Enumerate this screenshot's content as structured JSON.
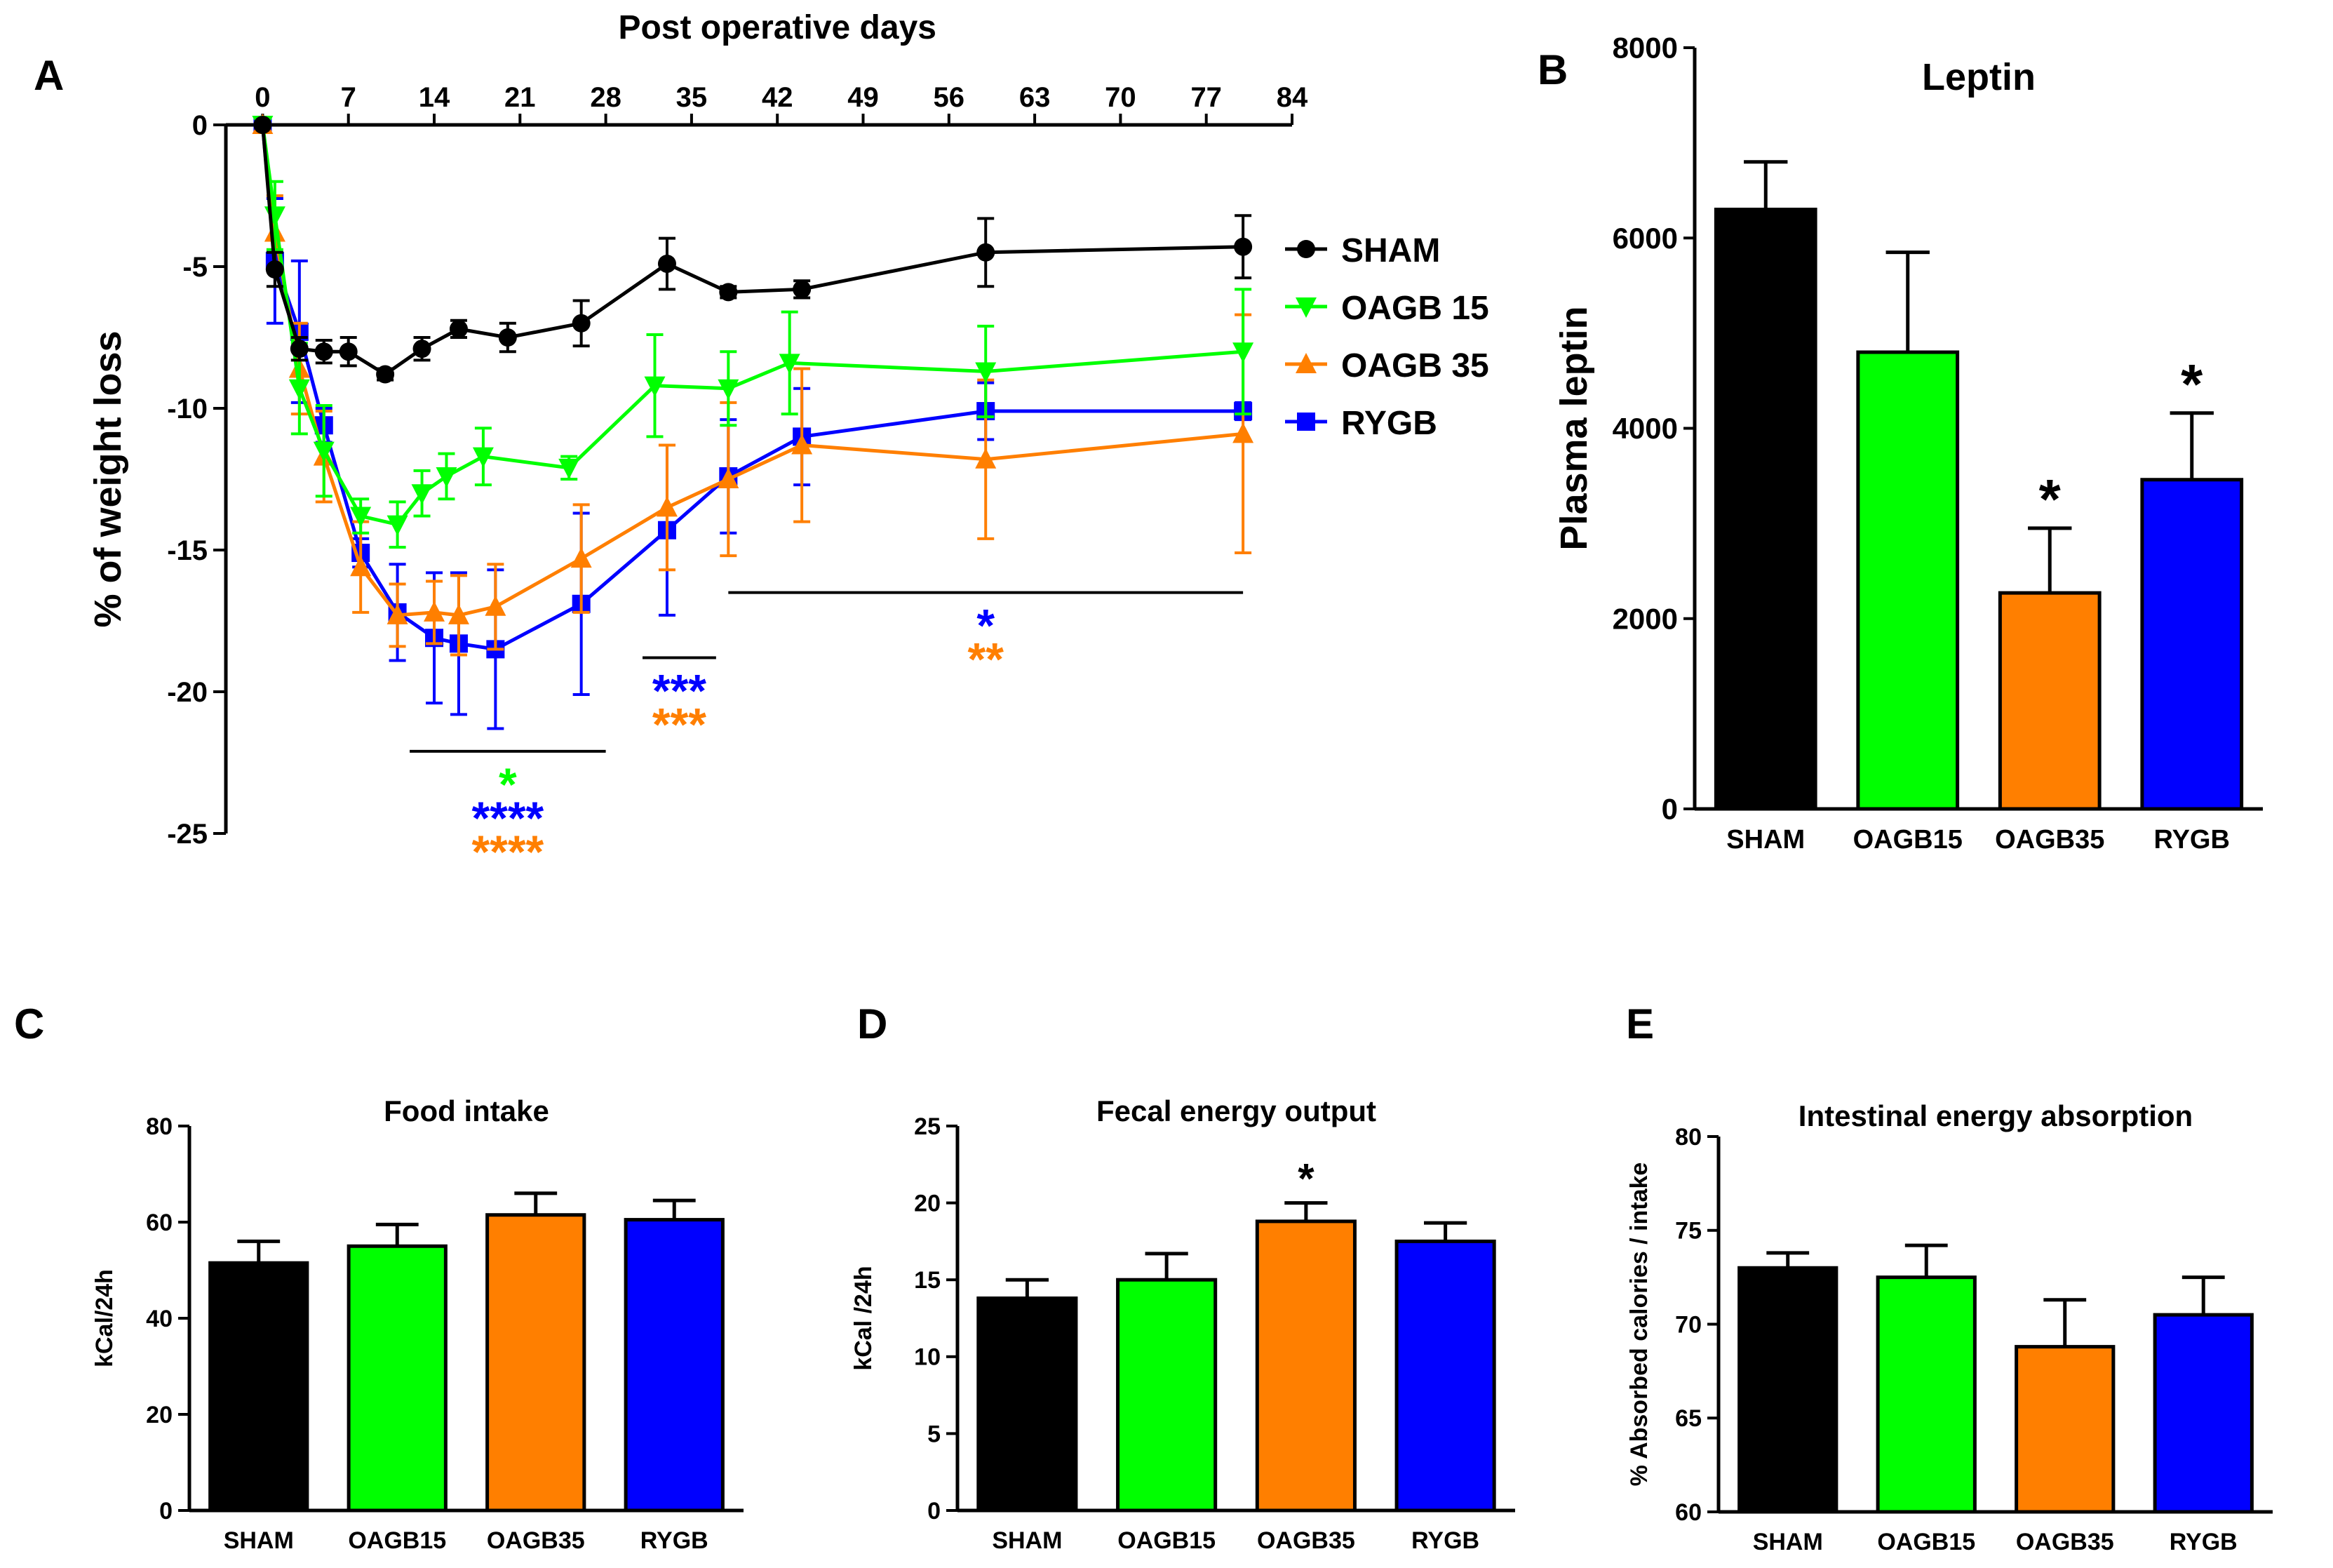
{
  "colors": {
    "sham": "#000000",
    "oagb15": "#00ff00",
    "oagb35": "#ff7f00",
    "rygb": "#0000ff",
    "axis": "#000000"
  },
  "chart_data": [
    {
      "id": "A",
      "panel_label": "A",
      "type": "line",
      "title": "Post operative days",
      "xlabel": "Post operative days",
      "ylabel": "% of weight loss",
      "xlim": [
        -3,
        84
      ],
      "ylim": [
        -25,
        0
      ],
      "xticks": [
        0,
        7,
        14,
        21,
        28,
        35,
        42,
        49,
        56,
        63,
        70,
        77,
        84
      ],
      "yticks": [
        0,
        -5,
        -10,
        -15,
        -20,
        -25
      ],
      "legend_position": "right",
      "series": [
        {
          "name": "SHAM",
          "color": "#000000",
          "marker": "circle",
          "x": [
            0,
            1,
            3,
            5,
            7,
            10,
            13,
            16,
            20,
            26,
            33,
            38,
            44,
            59,
            80
          ],
          "y": [
            0,
            -5.1,
            -7.9,
            -8.0,
            -8.0,
            -8.8,
            -7.9,
            -7.2,
            -7.5,
            -7.0,
            -4.9,
            -5.9,
            -5.8,
            -4.5,
            -4.3
          ],
          "err": [
            0,
            0.6,
            0.4,
            0.4,
            0.5,
            0.2,
            0.4,
            0.3,
            0.5,
            0.8,
            0.9,
            0.2,
            0.3,
            1.2,
            1.1
          ]
        },
        {
          "name": "OAGB 15",
          "color": "#00ff00",
          "marker": "triangle-down",
          "x": [
            0,
            1,
            3,
            5,
            8,
            11,
            13,
            15,
            18,
            25,
            32,
            38,
            43,
            59,
            80
          ],
          "y": [
            0,
            -3.2,
            -9.3,
            -11.5,
            -13.8,
            -14.1,
            -13.0,
            -12.4,
            -11.7,
            -12.1,
            -9.2,
            -9.3,
            -8.4,
            -8.7,
            -8.0
          ],
          "err": [
            0,
            1.2,
            1.6,
            1.6,
            0.6,
            0.8,
            0.8,
            0.8,
            1.0,
            0.4,
            1.8,
            1.3,
            1.8,
            1.6,
            2.2
          ]
        },
        {
          "name": "OAGB 35",
          "color": "#ff7f00",
          "marker": "triangle-up",
          "x": [
            0,
            1,
            3,
            5,
            8,
            11,
            14,
            16,
            19,
            26,
            33,
            38,
            44,
            59,
            80
          ],
          "y": [
            0,
            -3.8,
            -8.6,
            -11.7,
            -15.6,
            -17.3,
            -17.2,
            -17.3,
            -17.0,
            -15.3,
            -13.5,
            -12.5,
            -11.3,
            -11.8,
            -10.9
          ],
          "err": [
            0,
            1.3,
            1.6,
            1.6,
            1.6,
            1.1,
            1.1,
            1.4,
            1.5,
            1.9,
            2.2,
            2.7,
            2.7,
            2.8,
            4.2
          ]
        },
        {
          "name": "RYGB",
          "color": "#0000ff",
          "marker": "square",
          "x": [
            0,
            1,
            3,
            5,
            8,
            11,
            14,
            16,
            19,
            26,
            33,
            38,
            44,
            59,
            80
          ],
          "y": [
            0,
            -4.8,
            -7.3,
            -10.6,
            -15.1,
            -17.2,
            -18.1,
            -18.3,
            -18.5,
            -16.9,
            -14.3,
            -12.4,
            -11.0,
            -10.1,
            -10.1
          ],
          "err": [
            0,
            2.2,
            2.5,
            0.6,
            0.5,
            1.7,
            2.3,
            2.5,
            2.8,
            3.2,
            3.0,
            2.0,
            1.7,
            1.0,
            0.3
          ]
        }
      ],
      "annotations": [
        {
          "xrange": [
            12,
            28
          ],
          "y": -22.1,
          "stars": [
            {
              "text": "*",
              "color": "#00ff00"
            },
            {
              "text": "****",
              "color": "#0000ff"
            },
            {
              "text": "****",
              "color": "#ff7f00"
            }
          ]
        },
        {
          "xrange": [
            31,
            37
          ],
          "y": -18.8,
          "stars": [
            {
              "text": "***",
              "color": "#0000ff"
            },
            {
              "text": "***",
              "color": "#ff7f00"
            }
          ]
        },
        {
          "xrange": [
            38,
            80
          ],
          "y": -16.5,
          "stars": [
            {
              "text": "*",
              "color": "#0000ff"
            },
            {
              "text": "**",
              "color": "#ff7f00"
            }
          ]
        }
      ]
    },
    {
      "id": "B",
      "panel_label": "B",
      "type": "bar",
      "title": "Leptin",
      "xlabel": "",
      "ylabel": "Plasma leptin",
      "ylim": [
        0,
        8000
      ],
      "yticks": [
        0,
        2000,
        4000,
        6000,
        8000
      ],
      "categories": [
        "SHAM",
        "OAGB15",
        "OAGB35",
        "RYGB"
      ],
      "values": [
        6300,
        4800,
        2270,
        3460
      ],
      "errors": [
        500,
        1050,
        680,
        700
      ],
      "sig": [
        "",
        "",
        "*",
        "*"
      ],
      "bar_colors": [
        "#000000",
        "#00ff00",
        "#ff7f00",
        "#0000ff"
      ]
    },
    {
      "id": "C",
      "panel_label": "C",
      "type": "bar",
      "title": "Food intake",
      "xlabel": "",
      "ylabel": "kCal/24h",
      "ylim": [
        0,
        80
      ],
      "yticks": [
        0,
        20,
        40,
        60,
        80
      ],
      "categories": [
        "SHAM",
        "OAGB15",
        "OAGB35",
        "RYGB"
      ],
      "values": [
        51.5,
        55,
        61.5,
        60.5
      ],
      "errors": [
        4.5,
        4.5,
        4.5,
        4
      ],
      "sig": [
        "",
        "",
        "",
        ""
      ],
      "bar_colors": [
        "#000000",
        "#00ff00",
        "#ff7f00",
        "#0000ff"
      ]
    },
    {
      "id": "D",
      "panel_label": "D",
      "type": "bar",
      "title": "Fecal energy output",
      "xlabel": "",
      "ylabel": "kCal /24h",
      "ylim": [
        0,
        25
      ],
      "yticks": [
        0,
        5,
        10,
        15,
        20,
        25
      ],
      "categories": [
        "SHAM",
        "OAGB15",
        "OAGB35",
        "RYGB"
      ],
      "values": [
        13.8,
        15,
        18.8,
        17.5
      ],
      "errors": [
        1.2,
        1.7,
        1.2,
        1.2
      ],
      "sig": [
        "",
        "",
        "*",
        ""
      ],
      "bar_colors": [
        "#000000",
        "#00ff00",
        "#ff7f00",
        "#0000ff"
      ]
    },
    {
      "id": "E",
      "panel_label": "E",
      "type": "bar",
      "title": "Intestinal energy absorption",
      "xlabel": "",
      "ylabel": "% Absorbed calories / intake",
      "ylim": [
        60,
        80
      ],
      "yticks": [
        60,
        65,
        70,
        75,
        80
      ],
      "categories": [
        "SHAM",
        "OAGB15",
        "OAGB35",
        "RYGB"
      ],
      "values": [
        73,
        72.5,
        68.8,
        70.5
      ],
      "errors": [
        0.8,
        1.7,
        2.5,
        2
      ],
      "sig": [
        "",
        "",
        "",
        ""
      ],
      "bar_colors": [
        "#000000",
        "#00ff00",
        "#ff7f00",
        "#0000ff"
      ]
    }
  ]
}
